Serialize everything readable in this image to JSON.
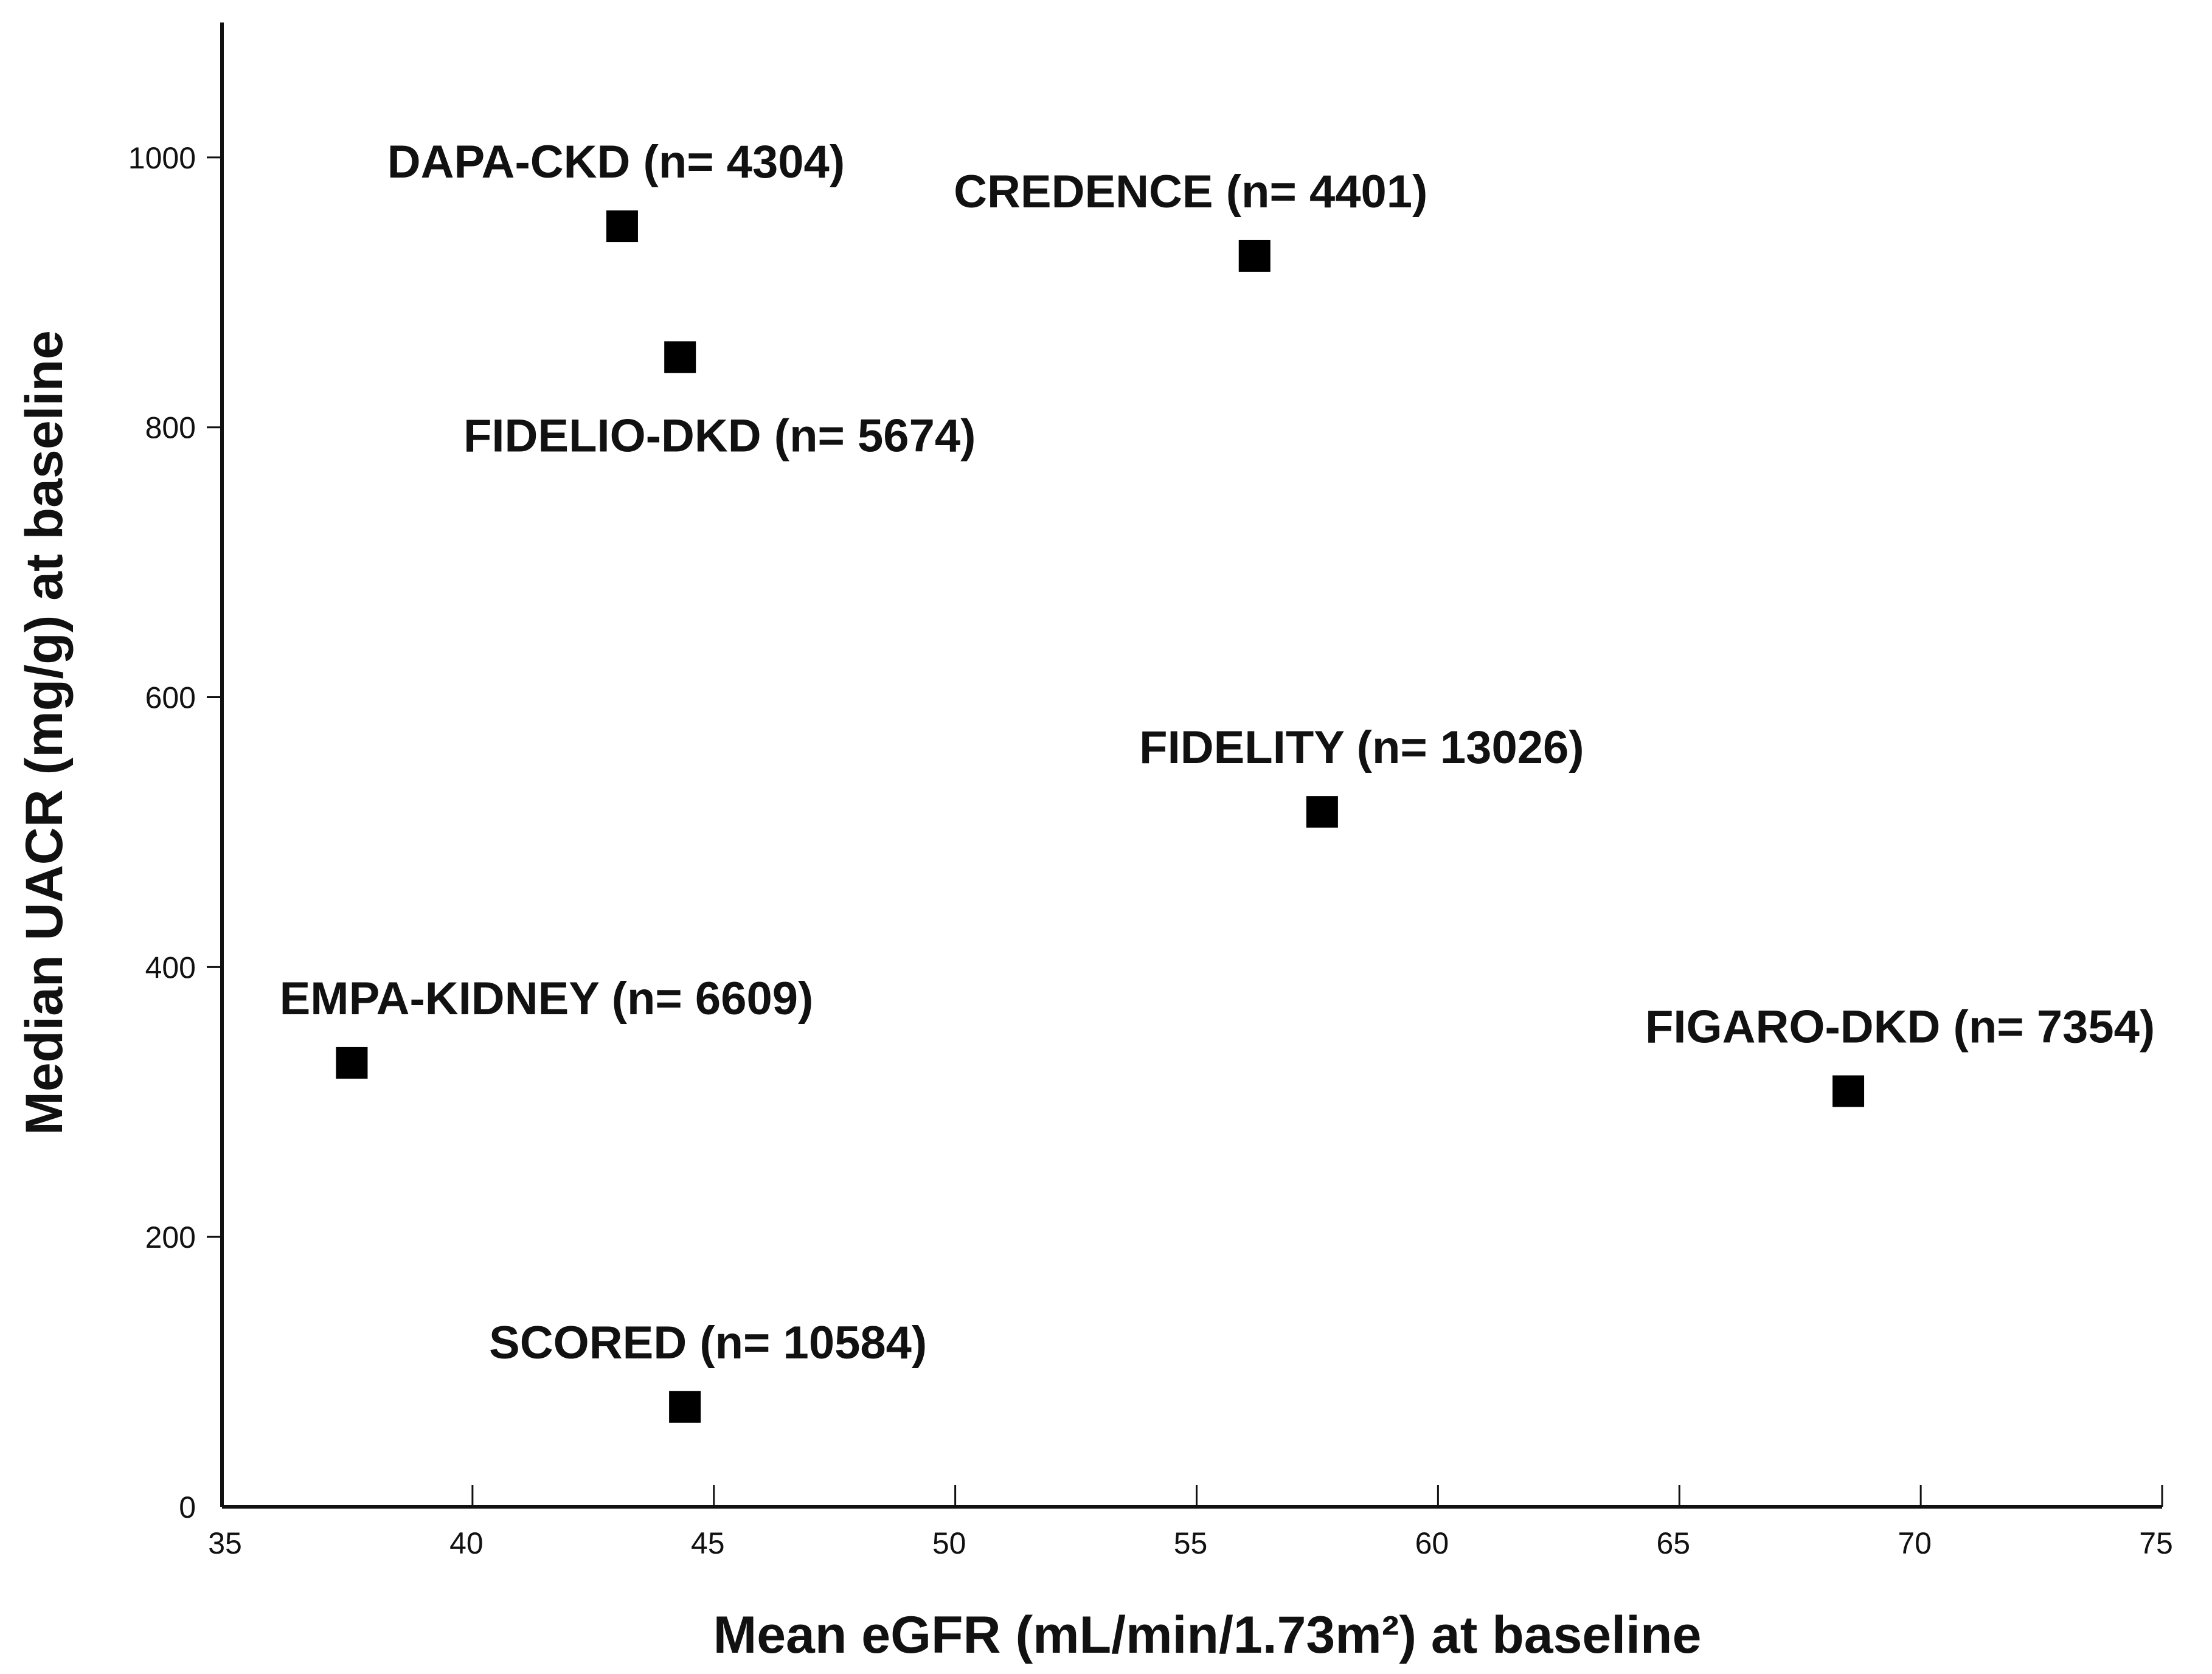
{
  "chart_data": {
    "type": "scatter",
    "xlabel": "Mean eGFR (mL/min/1.73m²) at baseline",
    "ylabel": "Median UACR (mg/g) at baseline",
    "xlim": [
      35,
      75
    ],
    "ylim": [
      0,
      1100
    ],
    "x_ticks": [
      35,
      40,
      45,
      50,
      55,
      60,
      65,
      70,
      75
    ],
    "y_ticks": [
      0,
      200,
      400,
      600,
      800,
      1000
    ],
    "legend": "none",
    "grid": false,
    "marker": "square",
    "marker_color": "#000000",
    "points": [
      {
        "label": "DAPA-CKD (n= 4304)",
        "x": 43.1,
        "y": 949
      },
      {
        "label": "CREDENCE (n= 4401)",
        "x": 56.2,
        "y": 927
      },
      {
        "label": "FIDELIO-DKD (n= 5674)",
        "x": 44.3,
        "y": 852
      },
      {
        "label": "FIDELITY (n= 13026)",
        "x": 57.6,
        "y": 515
      },
      {
        "label": "EMPA-KIDNEY (n= 6609)",
        "x": 37.5,
        "y": 329
      },
      {
        "label": "FIGARO-DKD (n= 7354)",
        "x": 68.5,
        "y": 308
      },
      {
        "label": "SCORED (n= 10584)",
        "x": 44.4,
        "y": 74
      }
    ]
  }
}
